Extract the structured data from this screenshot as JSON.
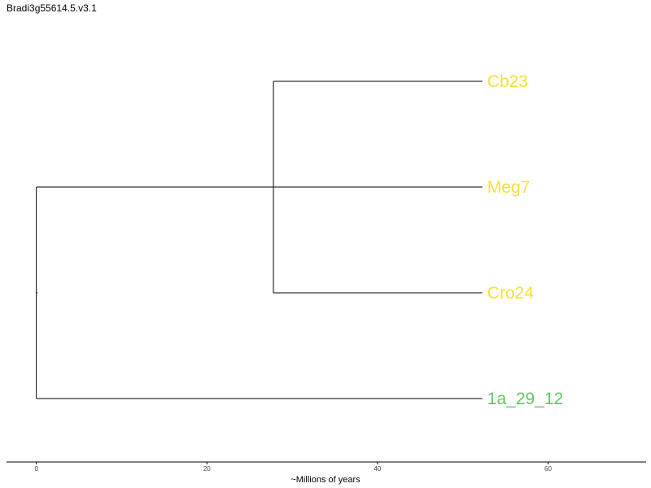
{
  "title": "Bradi3g55614.5.v3.1",
  "axis": {
    "label": "~Millions of years",
    "ticks": [
      0,
      20,
      40,
      60
    ],
    "range": [
      -3.5,
      71.5
    ]
  },
  "tree": {
    "root_age": 0,
    "inner_node_age": 27.8,
    "tip_age": 52.3,
    "leaves": [
      {
        "name": "Cb23",
        "color": "#f5e135"
      },
      {
        "name": "Meg7",
        "color": "#f5e135"
      },
      {
        "name": "Cro24",
        "color": "#f5e135"
      },
      {
        "name": "1a_29_12",
        "color": "#5cc95c"
      }
    ]
  }
}
